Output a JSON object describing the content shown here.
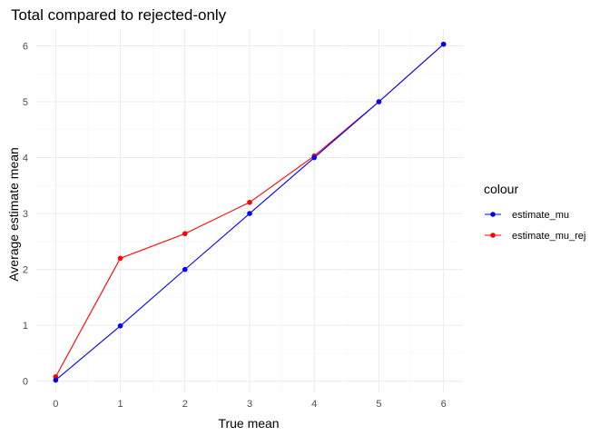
{
  "chart_data": {
    "type": "line",
    "title": "Total compared to rejected-only",
    "xlabel": "True mean",
    "ylabel": "Average estimate mean",
    "x": [
      0,
      1,
      2,
      3,
      4,
      5,
      6
    ],
    "xlim": [
      -0.3,
      6.3
    ],
    "ylim": [
      -0.2,
      6.3
    ],
    "xticks": [
      0,
      1,
      2,
      3,
      4,
      5,
      6
    ],
    "yticks": [
      0,
      1,
      2,
      3,
      4,
      5,
      6
    ],
    "grid": true,
    "legend": {
      "title": "colour",
      "placement": "right"
    },
    "series": [
      {
        "name": "estimate_mu",
        "color": "#0000ff",
        "values": [
          0.02,
          0.99,
          2.0,
          3.0,
          4.0,
          5.0,
          6.03
        ]
      },
      {
        "name": "estimate_mu_rej",
        "color": "#ff0000",
        "values": [
          0.08,
          2.2,
          2.64,
          3.2,
          4.03,
          5.0,
          6.03
        ]
      }
    ]
  }
}
